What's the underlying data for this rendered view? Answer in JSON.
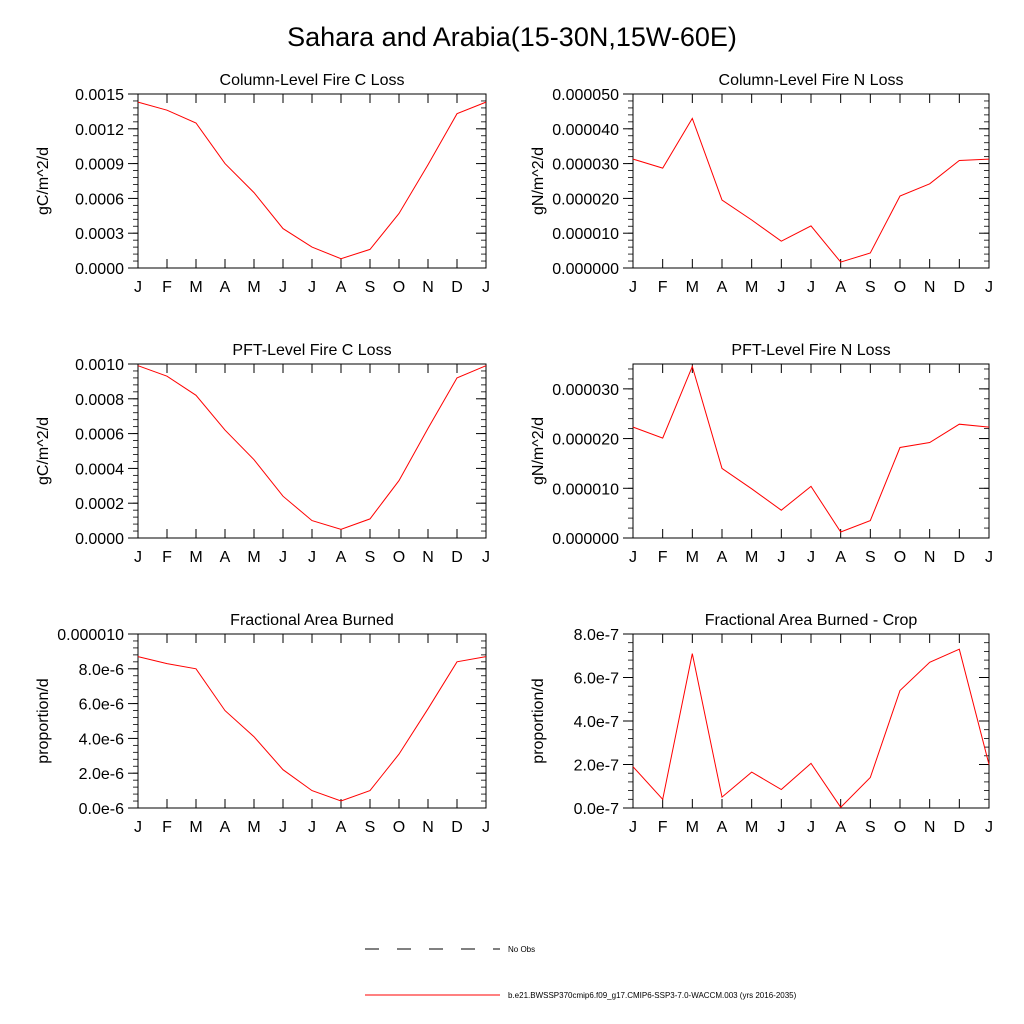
{
  "page": {
    "title": "Sahara and Arabia(15-30N,15W-60E)"
  },
  "legend": {
    "items": [
      {
        "label": "No Obs",
        "style": "dashed",
        "color": "#000000"
      },
      {
        "label": "b.e21.BWSSP370cmip6.f09_g17.CMIP6-SSP3-7.0-WACCM.003 (yrs 2016-2035)",
        "style": "solid",
        "color": "#ff0000"
      }
    ]
  },
  "chart_data": [
    {
      "type": "line",
      "title": "Column-Level Fire C Loss",
      "ylabel": "gC/m^2/d",
      "categories": [
        "J",
        "F",
        "M",
        "A",
        "M",
        "J",
        "J",
        "A",
        "S",
        "O",
        "N",
        "D",
        "J"
      ],
      "ylim": [
        0,
        0.0015
      ],
      "yticks": [
        "0.0000",
        "0.0003",
        "0.0006",
        "0.0009",
        "0.0012",
        "0.0015"
      ],
      "series": [
        {
          "color": "#ff0000",
          "values": [
            0.00143,
            0.00136,
            0.00125,
            0.0009,
            0.00065,
            0.00034,
            0.00018,
            8e-05,
            0.00016,
            0.00047,
            0.00089,
            0.00133,
            0.00143
          ]
        }
      ]
    },
    {
      "type": "line",
      "title": "Column-Level Fire N Loss",
      "ylabel": "gN/m^2/d",
      "categories": [
        "J",
        "F",
        "M",
        "A",
        "M",
        "J",
        "J",
        "A",
        "S",
        "O",
        "N",
        "D",
        "J"
      ],
      "ylim": [
        0,
        5e-05
      ],
      "yticks": [
        "0.000000",
        "0.000010",
        "0.000020",
        "0.000030",
        "0.000040",
        "0.000050"
      ],
      "series": [
        {
          "color": "#ff0000",
          "values": [
            3.13e-05,
            2.87e-05,
            4.3e-05,
            1.95e-05,
            1.38e-05,
            7.7e-06,
            1.21e-05,
            1.7e-06,
            4.3e-06,
            2.07e-05,
            2.42e-05,
            3.09e-05,
            3.13e-05
          ]
        }
      ]
    },
    {
      "type": "line",
      "title": "PFT-Level Fire C Loss",
      "ylabel": "gC/m^2/d",
      "categories": [
        "J",
        "F",
        "M",
        "A",
        "M",
        "J",
        "J",
        "A",
        "S",
        "O",
        "N",
        "D",
        "J"
      ],
      "ylim": [
        0,
        0.001
      ],
      "yticks": [
        "0.0000",
        "0.0002",
        "0.0004",
        "0.0006",
        "0.0008",
        "0.0010"
      ],
      "series": [
        {
          "color": "#ff0000",
          "values": [
            0.00099,
            0.00093,
            0.00082,
            0.00062,
            0.00045,
            0.00024,
            0.0001,
            5e-05,
            0.00011,
            0.00033,
            0.00063,
            0.00092,
            0.00099
          ]
        }
      ]
    },
    {
      "type": "line",
      "title": "PFT-Level Fire N Loss",
      "ylabel": "gN/m^2/d",
      "categories": [
        "J",
        "F",
        "M",
        "A",
        "M",
        "J",
        "J",
        "A",
        "S",
        "O",
        "N",
        "D",
        "J"
      ],
      "ylim": [
        0,
        3.5e-05
      ],
      "yticks": [
        "0.000000",
        "0.000010",
        "0.000020",
        "0.000030"
      ],
      "ytick_values": [
        0,
        1e-05,
        2e-05,
        3e-05
      ],
      "series": [
        {
          "color": "#ff0000",
          "values": [
            2.23e-05,
            2.01e-05,
            3.45e-05,
            1.4e-05,
            9.9e-06,
            5.6e-06,
            1.04e-05,
            1.2e-06,
            3.5e-06,
            1.82e-05,
            1.92e-05,
            2.29e-05,
            2.23e-05
          ]
        }
      ]
    },
    {
      "type": "line",
      "title": "Fractional Area Burned",
      "ylabel": "proportion/d",
      "categories": [
        "J",
        "F",
        "M",
        "A",
        "M",
        "J",
        "J",
        "A",
        "S",
        "O",
        "N",
        "D",
        "J"
      ],
      "ylim": [
        0,
        1e-05
      ],
      "yticks": [
        "0.0e-6",
        "2.0e-6",
        "4.0e-6",
        "6.0e-6",
        "8.0e-6",
        "0.000010"
      ],
      "series": [
        {
          "color": "#ff0000",
          "values": [
            8.7e-06,
            8.3e-06,
            8e-06,
            5.6e-06,
            4.1e-06,
            2.2e-06,
            1e-06,
            4e-07,
            1e-06,
            3.1e-06,
            5.7e-06,
            8.4e-06,
            8.7e-06
          ]
        }
      ]
    },
    {
      "type": "line",
      "title": "Fractional Area Burned - Crop",
      "ylabel": "proportion/d",
      "categories": [
        "J",
        "F",
        "M",
        "A",
        "M",
        "J",
        "J",
        "A",
        "S",
        "O",
        "N",
        "D",
        "J"
      ],
      "ylim": [
        0,
        8e-07
      ],
      "yticks": [
        "0.0e-7",
        "2.0e-7",
        "4.0e-7",
        "6.0e-7",
        "8.0e-7"
      ],
      "series": [
        {
          "color": "#ff0000",
          "values": [
            1.9e-07,
            4e-08,
            7.1e-07,
            5e-08,
            1.65e-07,
            8.5e-08,
            2.05e-07,
            3e-09,
            1.4e-07,
            5.4e-07,
            6.7e-07,
            7.3e-07,
            2e-07
          ]
        }
      ]
    }
  ]
}
